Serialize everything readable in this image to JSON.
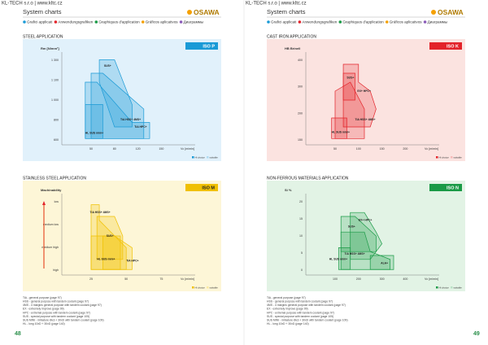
{
  "pages": [
    {
      "header": "KL-TECH s.r.o | www.kltc.cz",
      "title": "System charts",
      "logo": "OSAWA",
      "legend": [
        "Grafici applicati",
        "Anwendungsgrafiken",
        "Graphiques d'application",
        "Gráficos aplicativos",
        "Диаграммы"
      ],
      "page_number": "48",
      "footnotes": [
        "TiA - general purpose (page 97)",
        "HSS - general purpose with tandem coolant (page 97)",
        "4MS - 4 margins general purpose with tandem coolant (page 97)",
        "EX - extremely improve (page 99)",
        "HPC - extremal purpose with tandem coolant (page 97)",
        "SUS - special purpose with tandem coolant (page 105)",
        "SUS MINI - miniature Ø≤3 + 30xD with tandem coolant (page 109)",
        "HL - long 10xD + 30xD (page 140)"
      ]
    },
    {
      "header": "KL-TECH s.r.o | www.kltc.cz",
      "title": "System charts",
      "logo": "OSAWA",
      "legend": [
        "Grafici applicati",
        "Anwendungsgrafiken",
        "Graphiques d'application",
        "Gráficos aplicativos",
        "Диаграммы"
      ],
      "page_number": "49",
      "footnotes": [
        "TiA - general purpose (page 97)",
        "HSS - general purpose with tandem coolant (page 97)",
        "4MS - 4 margins general purpose with tandem coolant (page 97)",
        "EX - extremely improve (page 99)",
        "HPC - extremal purpose with tandem coolant (page 97)",
        "SUS - special purpose with tandem coolant (page 105)",
        "SUS MINI - miniature Ø≤3 + 30xD with tandem coolant (page 109)",
        "HL - long 10xD + 30xD (page 140)"
      ]
    }
  ],
  "panels": [
    {
      "title": "STEEL APPLICATION",
      "tag": "ISO P",
      "y_label": "Rm [N/mm²]",
      "x_label": "Vc [m/min]",
      "y_ticks": [
        "1 300",
        "1 100",
        "1 000",
        "800",
        "600"
      ],
      "x_ticks": [
        "50",
        "80",
        "120",
        "150"
      ],
      "regions": [
        "SUS+",
        "TiA HSS+ 4MS+",
        "TiA HPC+",
        "HL SUS mini+"
      ],
      "key": [
        "Hi choice",
        "suitable"
      ]
    },
    {
      "title": "CAST IRON APPLICATION",
      "tag": "ISO K",
      "y_label": "HB Brinell",
      "x_label": "Vc [m/min]",
      "y_ticks": [
        "400",
        "300",
        "200",
        "150"
      ],
      "x_ticks": [
        "50",
        "100",
        "150",
        "200"
      ],
      "regions": [
        "SUS+",
        "EX+ HPC+",
        "TiA HSS+ 4MS+",
        "HL SUS mini+"
      ],
      "key": [
        "Hi choice",
        "suitable"
      ]
    },
    {
      "title": "STAINLESS STEEL APPLICATION",
      "tag": "ISO M",
      "y_label": "Machinability",
      "x_label": "Vc [m/min]",
      "y_ticks": [
        "low",
        "medium low",
        "medium high",
        "high"
      ],
      "x_ticks": [
        "25",
        "50",
        "75"
      ],
      "regions": [
        "TiA HSS+ 4MS+",
        "SUS+",
        "HL SUS mini+",
        "TiA HPC+"
      ],
      "key": [
        "Hi choice",
        "suitable"
      ]
    },
    {
      "title": "NON-FERROUS MATERIALS APPLICATION",
      "tag": "ISO N",
      "y_label": "Si %",
      "x_label": "Vc [m/min]",
      "y_ticks": [
        "20",
        "15",
        "10",
        "5",
        "0"
      ],
      "x_ticks": [
        "100",
        "200",
        "300",
        "400"
      ],
      "regions": [
        "SUS+",
        "EX+ HPC+",
        "TiA HSS+ 4MS+",
        "HL SUS mini+",
        "ALH+"
      ],
      "key": [
        "Hi choice",
        "suitable"
      ]
    }
  ]
}
